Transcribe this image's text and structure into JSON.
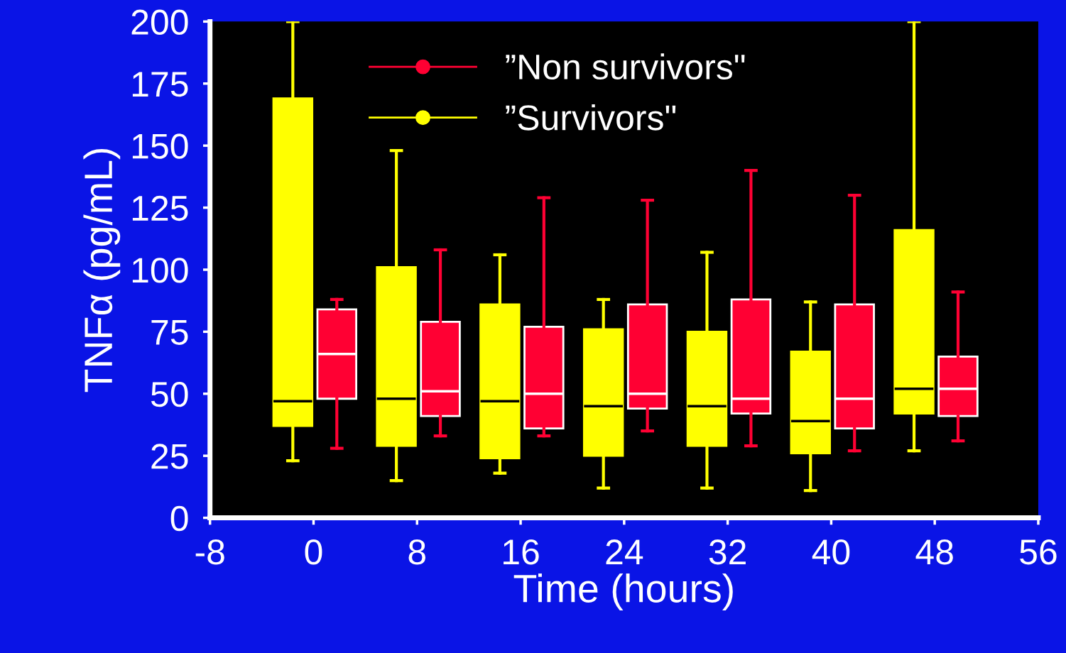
{
  "chart_data": {
    "type": "box",
    "xlabel": "Time (hours)",
    "ylabel": "TNFα (pg/mL)",
    "xlim": [
      -8,
      56
    ],
    "xticks": [
      -8,
      0,
      8,
      16,
      24,
      32,
      40,
      48,
      56
    ],
    "ylim": [
      0,
      200
    ],
    "yticks": [
      0,
      25,
      50,
      75,
      100,
      125,
      150,
      175,
      200
    ],
    "grid": false,
    "legend": "top",
    "marker": "circle",
    "series": [
      {
        "name": "”Non survivors\"",
        "color": "#ff0033",
        "x": [
          1.8,
          9.8,
          17.8,
          25.8,
          33.8,
          41.8,
          49.8
        ],
        "boxes": [
          {
            "low": 28,
            "q1": 48,
            "median": 66,
            "q3": 84,
            "high": 88
          },
          {
            "low": 33,
            "q1": 41,
            "median": 51,
            "q3": 79,
            "high": 108
          },
          {
            "low": 33,
            "q1": 36,
            "median": 50,
            "q3": 77,
            "high": 129
          },
          {
            "low": 35,
            "q1": 44,
            "median": 50,
            "q3": 86,
            "high": 128
          },
          {
            "low": 29,
            "q1": 42,
            "median": 48,
            "q3": 88,
            "high": 140
          },
          {
            "low": 27,
            "q1": 36,
            "median": 48,
            "q3": 86,
            "high": 130
          },
          {
            "low": 31,
            "q1": 41,
            "median": 52,
            "q3": 65,
            "high": 91
          }
        ]
      },
      {
        "name": "”Survivors\"",
        "color": "#ffff00",
        "x": [
          -1.6,
          6.4,
          14.4,
          22.4,
          30.4,
          38.4,
          46.4
        ],
        "boxes": [
          {
            "low": 23,
            "q1": 37,
            "median": 47,
            "q3": 169,
            "high": 200
          },
          {
            "low": 15,
            "q1": 29,
            "median": 48,
            "q3": 101,
            "high": 148
          },
          {
            "low": 18,
            "q1": 24,
            "median": 47,
            "q3": 86,
            "high": 106
          },
          {
            "low": 12,
            "q1": 25,
            "median": 45,
            "q3": 76,
            "high": 88
          },
          {
            "low": 12,
            "q1": 29,
            "median": 45,
            "q3": 75,
            "high": 107
          },
          {
            "low": 11,
            "q1": 26,
            "median": 39,
            "q3": 67,
            "high": 87
          },
          {
            "low": 27,
            "q1": 42,
            "median": 52,
            "q3": 116,
            "high": 200
          }
        ]
      }
    ]
  }
}
